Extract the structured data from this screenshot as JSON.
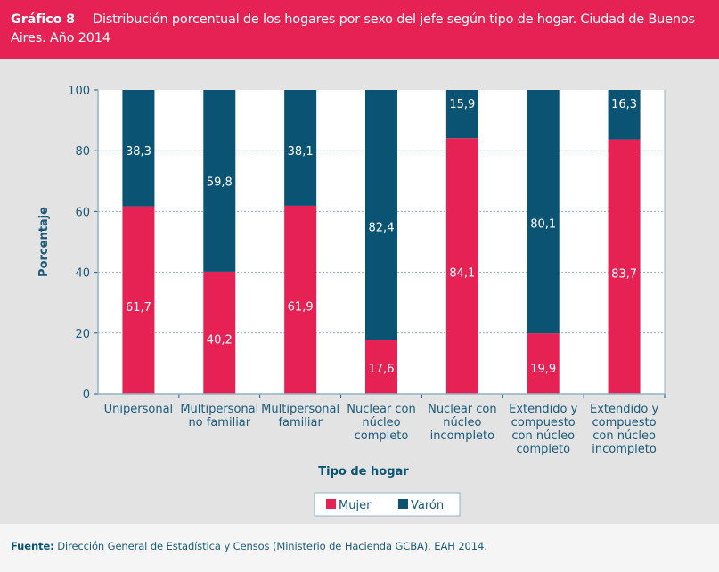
{
  "header": {
    "figure_number": "Gráfico 8",
    "title": "Distribución porcentual de los hogares por sexo del jefe según tipo de hogar. Ciudad de Buenos Aires. Año 2014"
  },
  "footer": {
    "source_label": "Fuente:",
    "source_text": "Dirección General de Estadística y Censos (Ministerio de Hacienda GCBA). EAH 2014."
  },
  "colors": {
    "mujer": "#e62255",
    "varon": "#0b5373",
    "axis_text": "#1a5a7a",
    "grid": "#8fb3c4"
  },
  "chart_data": {
    "type": "bar",
    "stacked": true,
    "title": "Distribución porcentual de los hogares por sexo del jefe según tipo de hogar. Ciudad de Buenos Aires. Año 2014",
    "xlabel": "Tipo de hogar",
    "ylabel": "Porcentaje",
    "ylim": [
      0,
      100
    ],
    "yticks": [
      0,
      20,
      40,
      60,
      80,
      100
    ],
    "grid": true,
    "legend_position": "bottom-center",
    "categories": [
      [
        "Unipersonal"
      ],
      [
        "Multipersonal",
        "no familiar"
      ],
      [
        "Multipersonal",
        "familiar"
      ],
      [
        "Nuclear con",
        "núcleo",
        "completo"
      ],
      [
        "Nuclear con",
        "núcleo",
        "incompleto"
      ],
      [
        "Extendido y",
        "compuesto",
        "con núcleo",
        "completo"
      ],
      [
        "Extendido y",
        "compuesto",
        "con núcleo",
        "incompleto"
      ]
    ],
    "series": [
      {
        "name": "Mujer",
        "values": [
          61.7,
          40.2,
          61.9,
          17.6,
          84.1,
          19.9,
          83.7
        ],
        "labels": [
          "61,7",
          "40,2",
          "61,9",
          "17,6",
          "84,1",
          "19,9",
          "83,7"
        ]
      },
      {
        "name": "Varón",
        "values": [
          38.3,
          59.8,
          38.1,
          82.4,
          15.9,
          80.1,
          16.3
        ],
        "labels": [
          "38,3",
          "59,8",
          "38,1",
          "82,4",
          "15,9",
          "80,1",
          "16,3"
        ]
      }
    ]
  }
}
